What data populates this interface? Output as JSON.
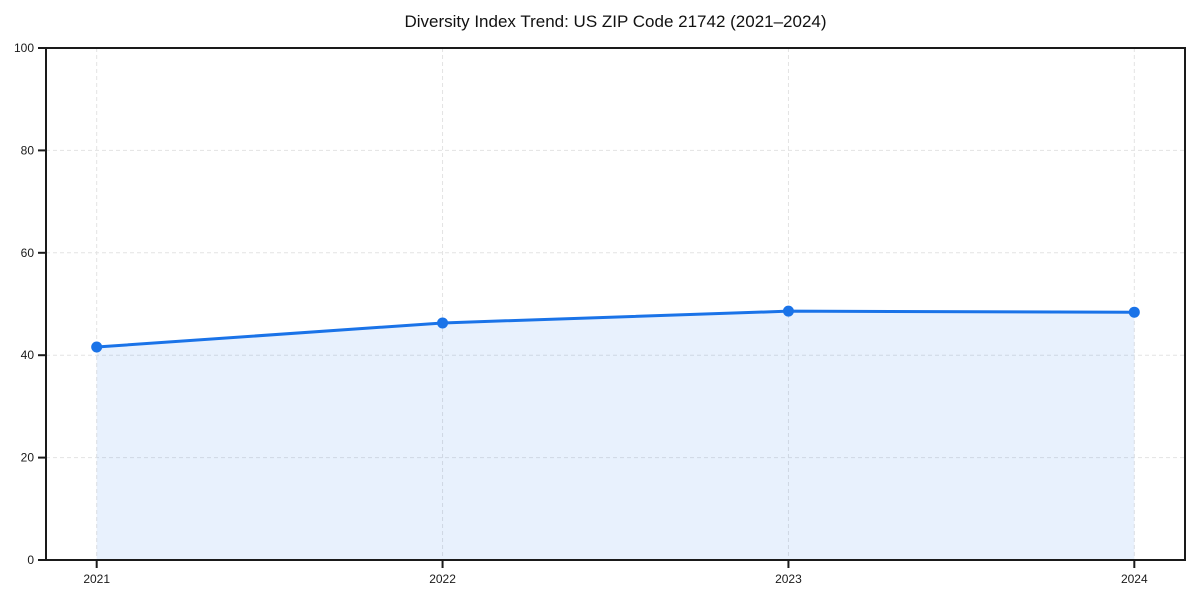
{
  "chart_data": {
    "type": "line",
    "title": "Diversity Index Trend: US ZIP Code 21742 (2021–2024)",
    "categories": [
      "2021",
      "2022",
      "2023",
      "2024"
    ],
    "series": [
      {
        "name": "Diversity Index",
        "values": [
          41.6,
          46.3,
          48.6,
          48.4
        ]
      }
    ],
    "xlabel": "",
    "ylabel": "",
    "ylim": [
      0,
      100
    ],
    "yticks": [
      0,
      20,
      40,
      60,
      80,
      100
    ],
    "grid": "dashed",
    "grid_axes": "both",
    "legend_position": "none",
    "area_fill": true,
    "markers": true,
    "colors": {
      "line": "#1a73e8",
      "marker": "#1a73e8",
      "area_fill": "rgba(26,115,232,0.10)",
      "grid": "#e3e3e3",
      "axis_frame": "#1a1a1a",
      "tick_label": "#1a1a1a",
      "title": "#111111",
      "background": "#ffffff"
    }
  }
}
